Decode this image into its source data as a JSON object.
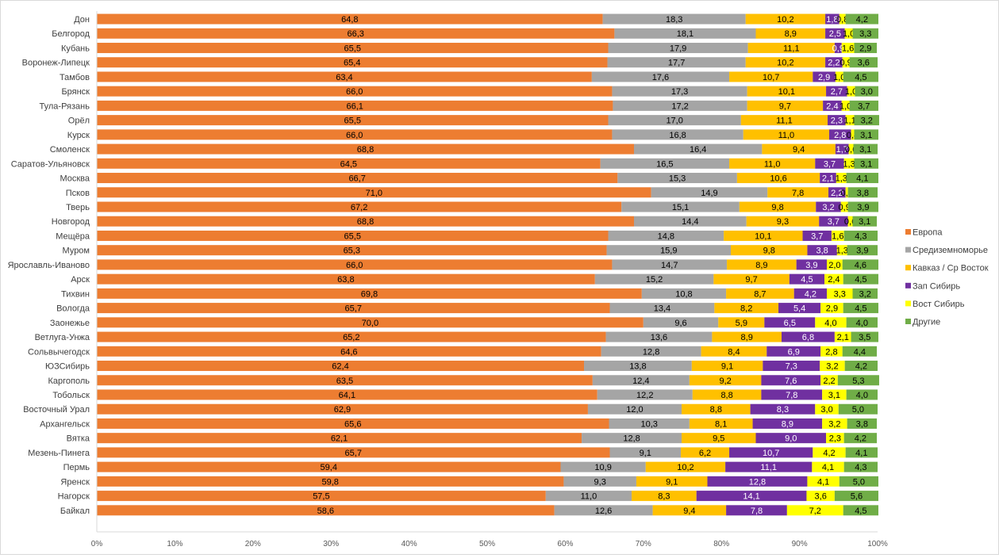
{
  "chart_data": {
    "type": "bar",
    "orientation": "horizontal",
    "stacking": "percent",
    "legend_position": "right",
    "grid": false,
    "xlim": [
      0,
      100
    ],
    "x_ticks": [
      "0%",
      "10%",
      "20%",
      "30%",
      "40%",
      "50%",
      "60%",
      "70%",
      "80%",
      "90%",
      "100%"
    ],
    "categories": [
      "Дон",
      "Белгород",
      "Кубань",
      "Воронеж-Липецк",
      "Тамбов",
      "Брянск",
      "Тула-Рязань",
      "Орёл",
      "Курск",
      "Смоленск",
      "Саратов-Ульяновск",
      "Москва",
      "Псков",
      "Тверь",
      "Новгород",
      "Мещёра",
      "Муром",
      "Ярославль-Иваново",
      "Арск",
      "Тихвин",
      "Вологда",
      "Заонежье",
      "Ветлуга-Унжа",
      "Сольвычегодск",
      "ЮЗСибирь",
      "Каргополь",
      "Тобольск",
      "Восточный Урал",
      "Архангельск",
      "Вятка",
      "Мезень-Пинега",
      "Пермь",
      "Яренск",
      "Нагорск",
      "Байкал"
    ],
    "series": [
      {
        "name": "Европа",
        "color": "#ED7D31",
        "label_color": "#000000",
        "values": [
          64.8,
          66.3,
          65.5,
          65.4,
          63.4,
          66.0,
          66.1,
          65.5,
          66.0,
          68.8,
          64.5,
          66.7,
          71.0,
          67.2,
          68.8,
          65.5,
          65.3,
          66.0,
          63.8,
          69.8,
          65.7,
          70.0,
          65.2,
          64.6,
          62.4,
          63.5,
          64.1,
          62.9,
          65.6,
          62.1,
          65.7,
          59.4,
          59.8,
          57.5,
          58.6
        ]
      },
      {
        "name": "Средиземноморье",
        "color": "#A5A5A5",
        "label_color": "#000000",
        "values": [
          18.3,
          18.1,
          17.9,
          17.7,
          17.6,
          17.3,
          17.2,
          17.0,
          16.8,
          16.4,
          16.5,
          15.3,
          14.9,
          15.1,
          14.4,
          14.8,
          15.9,
          14.7,
          15.2,
          10.8,
          13.4,
          9.6,
          13.6,
          12.8,
          13.8,
          12.4,
          12.2,
          12.0,
          10.3,
          12.8,
          9.1,
          10.9,
          9.3,
          11.0,
          12.6
        ]
      },
      {
        "name": "Кавказ / Ср Восток",
        "color": "#FFC000",
        "label_color": "#000000",
        "values": [
          10.2,
          8.9,
          11.1,
          10.2,
          10.7,
          10.1,
          9.7,
          11.1,
          11.0,
          9.4,
          11.0,
          10.6,
          7.8,
          9.8,
          9.3,
          10.1,
          9.8,
          8.9,
          9.7,
          8.7,
          8.2,
          5.9,
          8.9,
          8.4,
          9.1,
          9.2,
          8.8,
          8.8,
          8.1,
          9.5,
          6.2,
          10.2,
          9.1,
          8.3,
          9.4
        ]
      },
      {
        "name": "Зап Сибирь",
        "color": "#7030A0",
        "label_color": "#FFFFFF",
        "values": [
          1.8,
          2.5,
          0.9,
          2.2,
          2.9,
          2.7,
          2.4,
          2.3,
          2.8,
          1.7,
          3.7,
          2.1,
          2.2,
          3.2,
          3.7,
          3.7,
          3.8,
          3.9,
          4.5,
          4.2,
          5.4,
          6.5,
          6.8,
          6.9,
          7.3,
          7.6,
          7.8,
          8.3,
          8.9,
          9.0,
          10.7,
          11.1,
          12.8,
          14.1,
          7.8
        ]
      },
      {
        "name": "Вост Сибирь",
        "color": "#FFFF00",
        "label_color": "#000000",
        "values": [
          0.8,
          1.0,
          1.6,
          0.9,
          1.0,
          1.0,
          1.0,
          1.1,
          0.4,
          0.6,
          1.3,
          1.3,
          0.3,
          0.9,
          0.6,
          1.6,
          1.3,
          2.0,
          2.4,
          3.3,
          2.9,
          4.0,
          2.1,
          2.8,
          3.2,
          2.2,
          3.1,
          3.0,
          3.2,
          2.3,
          4.2,
          4.1,
          4.1,
          3.6,
          7.2
        ]
      },
      {
        "name": "Другие",
        "color": "#70AD47",
        "label_color": "#000000",
        "values": [
          4.2,
          3.3,
          2.9,
          3.6,
          4.5,
          3.0,
          3.7,
          3.2,
          3.1,
          3.1,
          3.1,
          4.1,
          3.8,
          3.9,
          3.1,
          4.3,
          3.9,
          4.6,
          4.5,
          3.2,
          4.5,
          4.0,
          3.5,
          4.4,
          4.2,
          5.3,
          4.0,
          5.0,
          3.8,
          4.2,
          4.1,
          4.3,
          5.0,
          5.6,
          4.5
        ]
      }
    ]
  }
}
